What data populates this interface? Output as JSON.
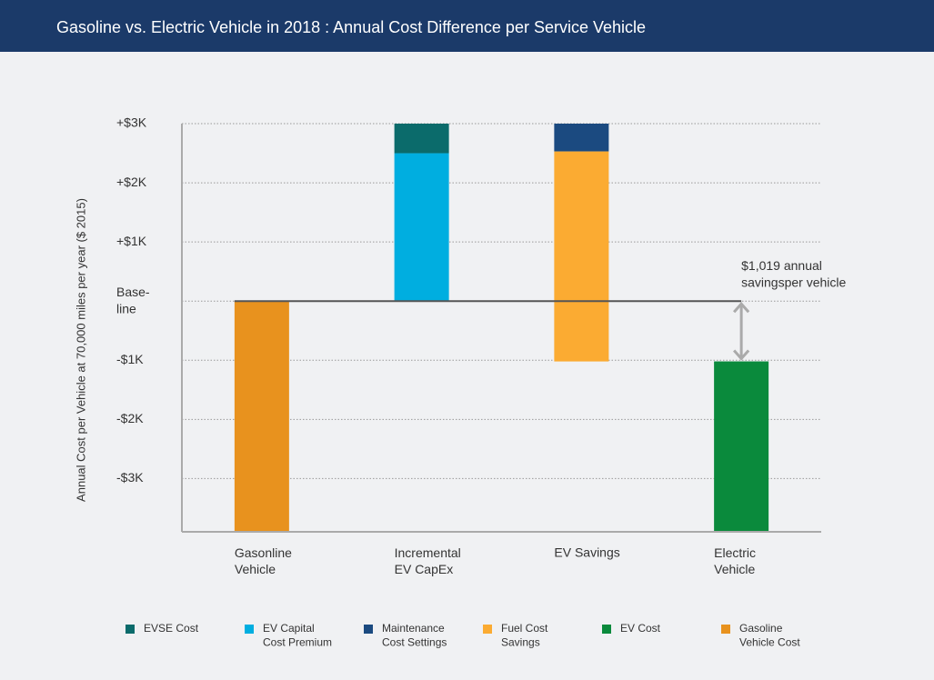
{
  "chart_data": {
    "type": "waterfall",
    "title": "Gasoline vs. Electric Vehicle in 2018 : Annual Cost Difference per Service Vehicle",
    "y_label": "Annual Cost per Vehicle at 70,000 miles per year ($ 2015)",
    "categories": [
      "Gasonline\nVehicle",
      "Incremental\nEV CapEx",
      "EV Savings",
      "Electric\nVehicle"
    ],
    "measure": [
      "total",
      "relative",
      "relative",
      "total"
    ],
    "series": [
      {
        "name": "EVSE Cost",
        "color": "#0b6b6b",
        "values": [
          null,
          0.5,
          null,
          null
        ]
      },
      {
        "name": "EV Capital\nCost Premium",
        "color": "#00aee0",
        "values": [
          null,
          2.5,
          null,
          null
        ]
      },
      {
        "name": "Maintenance\nCost Settings",
        "color": "#1b4a80",
        "values": [
          null,
          null,
          -0.47,
          null
        ]
      },
      {
        "name": "Fuel Cost\nSavings",
        "color": "#fbab32",
        "values": [
          null,
          null,
          -3.55,
          null
        ]
      },
      {
        "name": "EV Cost",
        "color": "#0a8a3c",
        "values": [
          null,
          null,
          null,
          -1.019
        ]
      },
      {
        "name": "Gasoline\nVehicle Cost",
        "color": "#e8921e",
        "values": [
          0,
          null,
          null,
          null
        ]
      }
    ],
    "annotation": "$1,019 annual\nsavingsper vehicle",
    "ylim": [
      -3.9,
      3
    ],
    "yticks": [
      {
        "value": 3,
        "label": "+$3K"
      },
      {
        "value": 2,
        "label": "+$2K"
      },
      {
        "value": 1,
        "label": "+$1K"
      },
      {
        "value": 0,
        "label": "Base-\nline"
      },
      {
        "value": -1,
        "label": "-$1K"
      },
      {
        "value": -2,
        "label": "-$2K"
      },
      {
        "value": -3,
        "label": "-$3K"
      }
    ],
    "grid": true
  }
}
